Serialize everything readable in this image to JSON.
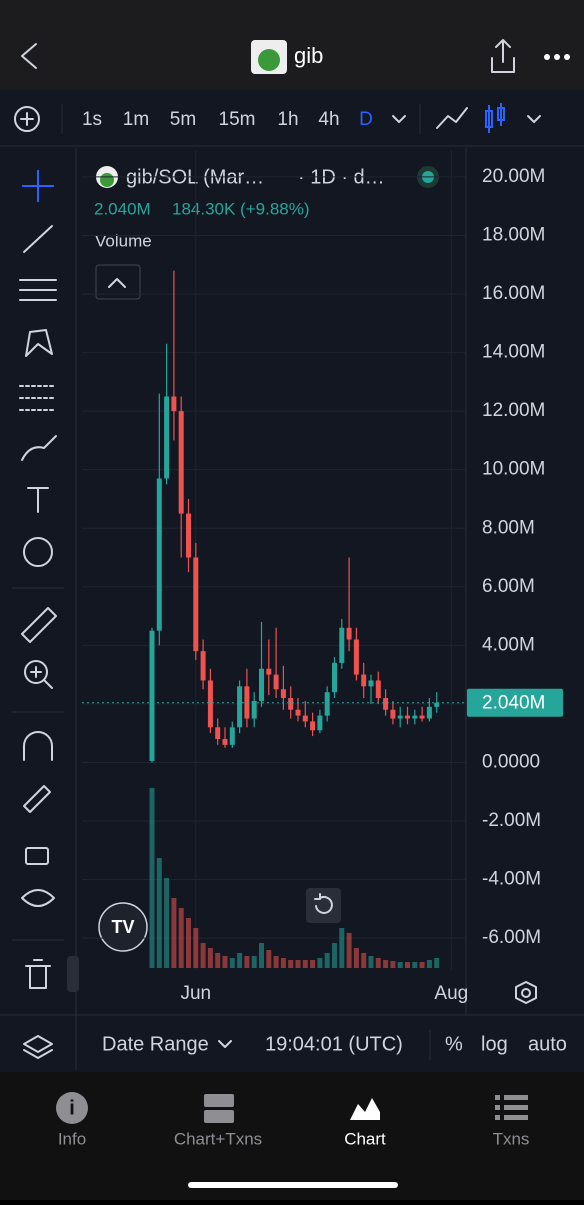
{
  "header": {
    "title": "gib"
  },
  "toolbar": {
    "intervals": [
      "1s",
      "1m",
      "5m",
      "15m",
      "1h",
      "4h",
      "D"
    ],
    "active_interval": 6
  },
  "chart_data": {
    "type": "candlestick",
    "title": "gib/SOL (Mar…",
    "subtitle": "· 1D · d…",
    "change": "184.30K (+9.88%)",
    "volume_label": "Volume",
    "last": {
      "value": 2.04,
      "label": "2.040M"
    },
    "categories": [
      null,
      null,
      null,
      null,
      null,
      null,
      "Jun",
      null,
      null,
      null,
      null,
      null,
      null,
      null,
      null,
      null,
      null,
      null,
      null,
      null,
      null,
      null,
      null,
      null,
      null,
      null,
      null,
      null,
      null,
      null,
      null,
      null,
      null,
      null,
      null,
      null,
      null,
      null,
      null,
      null,
      null,
      "Aug"
    ],
    "open": [
      0.05,
      4.5,
      9.7,
      12.5,
      12.0,
      8.5,
      7.0,
      3.8,
      2.8,
      1.2,
      0.8,
      0.6,
      1.2,
      2.6,
      1.5,
      2.1,
      3.2,
      3.0,
      2.5,
      2.2,
      1.8,
      1.6,
      1.4,
      1.1,
      1.6,
      2.4,
      3.4,
      4.6,
      4.2,
      3.0,
      2.6,
      2.8,
      2.2,
      1.8,
      1.5,
      1.6,
      1.5,
      1.6,
      1.5,
      1.9,
      null,
      null
    ],
    "high": [
      4.6,
      12.6,
      14.3,
      16.8,
      12.5,
      9.0,
      7.5,
      4.2,
      3.2,
      1.5,
      1.2,
      1.4,
      2.8,
      3.2,
      2.4,
      4.8,
      4.2,
      4.6,
      3.3,
      2.6,
      2.2,
      2.1,
      1.7,
      1.8,
      2.6,
      3.6,
      4.9,
      7.0,
      4.6,
      3.4,
      3.0,
      3.1,
      2.5,
      2.1,
      1.9,
      1.9,
      1.8,
      1.9,
      2.2,
      2.4,
      null,
      null
    ],
    "low": [
      0.0,
      4.0,
      9.5,
      11.0,
      7.0,
      6.5,
      3.5,
      2.5,
      1.0,
      0.6,
      0.5,
      0.5,
      1.0,
      1.2,
      1.2,
      1.9,
      2.3,
      2.2,
      1.8,
      1.5,
      1.4,
      1.2,
      0.9,
      1.0,
      1.4,
      2.2,
      3.2,
      3.8,
      2.8,
      2.2,
      2.0,
      2.0,
      1.6,
      1.3,
      1.2,
      1.3,
      1.3,
      1.4,
      1.4,
      1.7,
      null,
      null
    ],
    "close": [
      4.5,
      9.7,
      12.5,
      12.0,
      8.5,
      7.0,
      3.8,
      2.8,
      1.2,
      0.8,
      0.6,
      1.2,
      2.6,
      1.5,
      2.1,
      3.2,
      3.0,
      2.5,
      2.2,
      1.8,
      1.6,
      1.4,
      1.1,
      1.6,
      2.4,
      3.4,
      4.6,
      4.2,
      3.0,
      2.6,
      2.8,
      2.2,
      1.8,
      1.5,
      1.6,
      1.5,
      1.6,
      1.5,
      1.9,
      2.04,
      null,
      null
    ],
    "volume": [
      180,
      110,
      90,
      70,
      60,
      50,
      40,
      25,
      20,
      15,
      12,
      10,
      15,
      12,
      12,
      25,
      18,
      12,
      10,
      8,
      8,
      8,
      8,
      10,
      15,
      25,
      40,
      35,
      20,
      15,
      12,
      10,
      8,
      7,
      6,
      6,
      6,
      6,
      8,
      10,
      null,
      null
    ],
    "up_color": "#26a69a",
    "down_color": "#ef5350",
    "ylim": [
      -7.09,
      20.92
    ],
    "yticks": [
      {
        "value": 20,
        "label": "20.00M"
      },
      {
        "value": 18,
        "label": "18.00M"
      },
      {
        "value": 16,
        "label": "16.00M"
      },
      {
        "value": 14,
        "label": "14.00M"
      },
      {
        "value": 12,
        "label": "12.00M"
      },
      {
        "value": 10,
        "label": "10.00M"
      },
      {
        "value": 8,
        "label": "8.00M"
      },
      {
        "value": 6,
        "label": "6.00M"
      },
      {
        "value": 4,
        "label": "4.00M"
      },
      {
        "value": 2,
        "label": "2.00M"
      },
      {
        "value": 0,
        "label": "0.0000"
      },
      {
        "value": -2,
        "label": "-2.00M"
      },
      {
        "value": -4,
        "label": "-4.00M"
      },
      {
        "value": -6,
        "label": "-6.00M"
      }
    ],
    "grid": true
  },
  "footer": {
    "date_range": "Date Range",
    "time": "19:04:01 (UTC)",
    "percent": "%",
    "log": "log",
    "auto": "auto"
  },
  "tabs": [
    "Info",
    "Chart+Txns",
    "Chart",
    "Txns"
  ],
  "active_tab": 2
}
